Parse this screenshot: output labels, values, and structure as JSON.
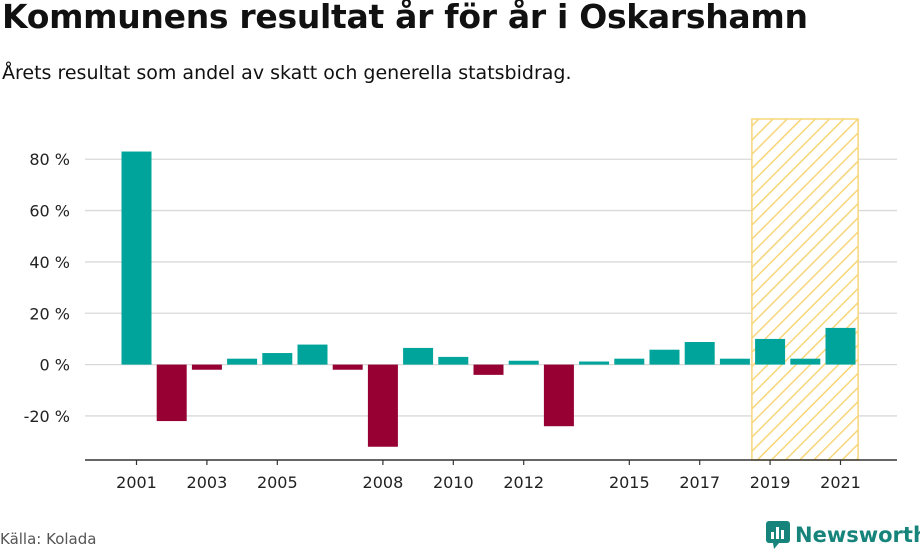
{
  "title": "Kommunens resultat år för år i Oskarshamn",
  "subtitle": "Årets resultat som andel av skatt och generella statsbidrag.",
  "source": "Källa: Kolada",
  "brand": "Newsworthy",
  "colors": {
    "positive": "#00a49a",
    "negative": "#960032",
    "highlight": "#f7d67a",
    "grid": "#d9d9d9"
  },
  "chart_data": {
    "type": "bar",
    "categories": [
      "2001",
      "2002",
      "2003",
      "2004",
      "2005",
      "2006",
      "2007",
      "2008",
      "2009",
      "2010",
      "2011",
      "2012",
      "2013",
      "2014",
      "2015",
      "2016",
      "2017",
      "2018",
      "2019",
      "2020",
      "2021"
    ],
    "values": [
      83,
      -22,
      -2,
      2.3,
      4.5,
      7.8,
      -2,
      -32,
      6.5,
      3,
      -4,
      1.5,
      -24,
      1.2,
      2.3,
      5.8,
      8.8,
      2.3,
      10,
      2.3,
      14.3
    ],
    "x_tick_labels": [
      "2001",
      "2003",
      "2005",
      "2008",
      "2010",
      "2012",
      "2015",
      "2017",
      "2019",
      "2021"
    ],
    "y_ticks": [
      -20,
      0,
      20,
      40,
      60,
      80
    ],
    "y_tick_labels": [
      "-20 %",
      "0 %",
      "20 %",
      "40 %",
      "60 %",
      "80 %"
    ],
    "ylim": [
      -37,
      96
    ],
    "highlight_range": [
      "2019",
      "2021"
    ],
    "grid": true,
    "xlabel": "",
    "ylabel": ""
  }
}
